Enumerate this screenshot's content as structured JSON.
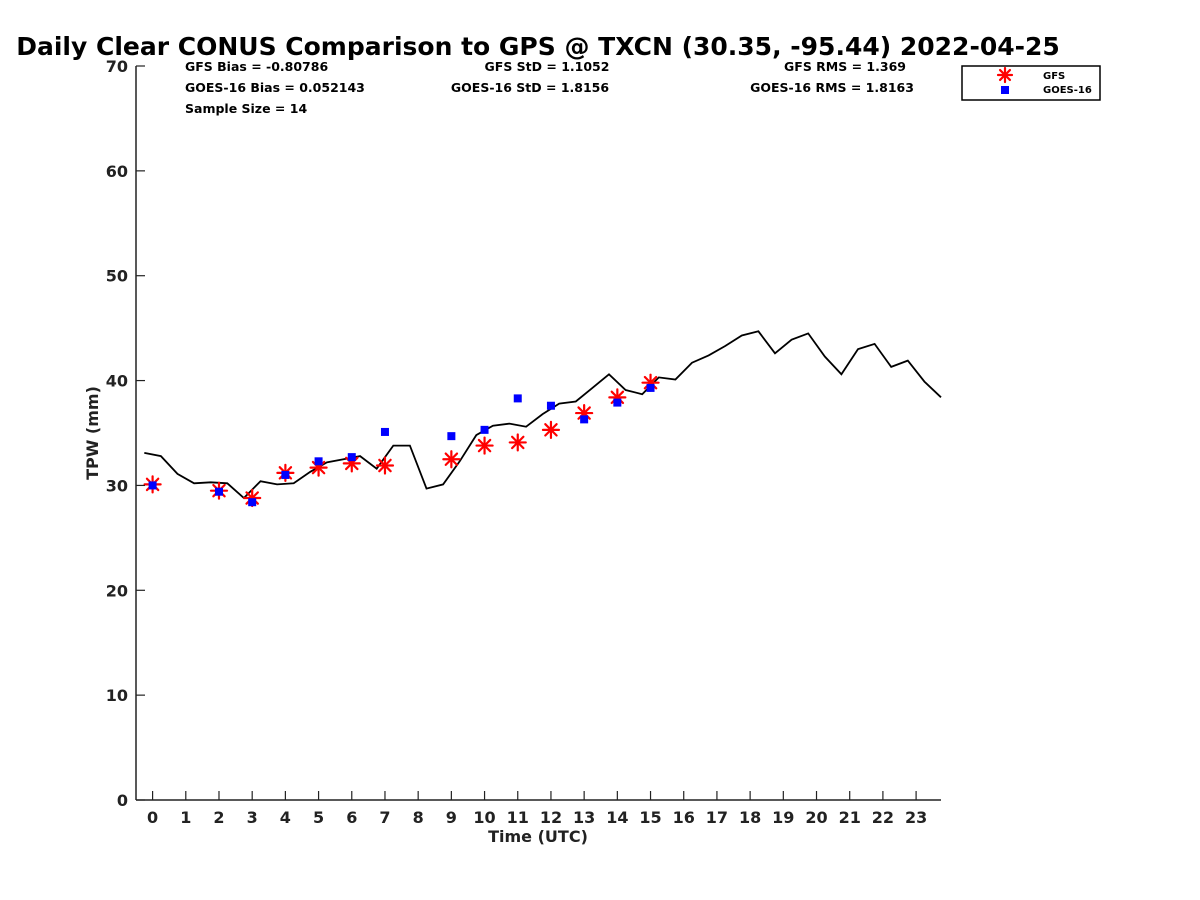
{
  "chart_data": {
    "type": "scatter",
    "title": "Daily Clear CONUS Comparison to GPS @ TXCN (30.35, -95.44) 2022-04-25",
    "xlabel": "Time (UTC)",
    "ylabel": "TPW (mm)",
    "xlim": [
      -0.5,
      23.75
    ],
    "ylim": [
      0,
      70
    ],
    "x_ticks": [
      "0",
      "1",
      "2",
      "3",
      "4",
      "5",
      "6",
      "7",
      "8",
      "9",
      "10",
      "11",
      "12",
      "13",
      "14",
      "15",
      "16",
      "17",
      "18",
      "19",
      "20",
      "21",
      "22",
      "23"
    ],
    "y_ticks": [
      "0",
      "10",
      "20",
      "30",
      "40",
      "50",
      "60",
      "70"
    ],
    "grid": false,
    "legend_position": "top-right",
    "stats": {
      "gfs_bias": "GFS Bias = -0.80786",
      "goes_bias": "GOES-16 Bias = 0.052143",
      "sample_size": "Sample Size = 14",
      "gfs_std": "GFS StD = 1.1052",
      "goes_std": "GOES-16 StD = 1.8156",
      "gfs_rms": "GFS RMS = 1.369",
      "goes_rms": "GOES-16 RMS = 1.8163"
    },
    "series": [
      {
        "name": "GFS",
        "marker": "asterisk",
        "color": "#ff0000",
        "x": [
          0,
          2,
          3,
          4,
          5,
          6,
          7,
          9,
          10,
          11,
          12,
          13,
          14,
          15
        ],
        "y": [
          30.1,
          29.5,
          28.8,
          31.2,
          31.7,
          32.1,
          31.9,
          32.5,
          33.8,
          34.1,
          35.3,
          36.9,
          38.4,
          39.8
        ]
      },
      {
        "name": "GOES-16",
        "marker": "square",
        "color": "#0000ff",
        "x": [
          0,
          2,
          3,
          4,
          5,
          6,
          7,
          9,
          10,
          11,
          12,
          13,
          14,
          15
        ],
        "y": [
          30.0,
          29.4,
          28.4,
          31.0,
          32.3,
          32.7,
          35.1,
          34.7,
          35.3,
          38.3,
          37.6,
          36.3,
          37.9,
          39.3
        ]
      },
      {
        "marker": "line",
        "color": "#000000",
        "x": [
          -0.25,
          0.25,
          0.75,
          1.25,
          1.75,
          2.25,
          2.75,
          3.25,
          3.75,
          4.25,
          4.75,
          5.25,
          5.75,
          6.25,
          6.75,
          7.25,
          7.75,
          8.25,
          8.75,
          9.25,
          9.75,
          10.25,
          10.75,
          11.25,
          11.75,
          12.25,
          12.75,
          13.25,
          13.75,
          14.25,
          14.75,
          15.25,
          15.75,
          16.25,
          16.75,
          17.25,
          17.75,
          18.25,
          18.75,
          19.25,
          19.75,
          20.25,
          20.75,
          21.25,
          21.75,
          22.25,
          22.75,
          23.25,
          23.75
        ],
        "y": [
          33.1,
          32.8,
          31.1,
          30.2,
          30.3,
          30.2,
          28.8,
          30.4,
          30.1,
          30.2,
          31.3,
          32.2,
          32.5,
          32.8,
          31.6,
          33.8,
          33.8,
          29.7,
          30.1,
          32.3,
          34.8,
          35.7,
          35.9,
          35.6,
          36.8,
          37.8,
          38.0,
          39.3,
          40.6,
          39.1,
          38.7,
          40.3,
          40.1,
          41.7,
          42.4,
          43.3,
          44.3,
          44.7,
          42.6,
          43.9,
          44.5,
          42.3,
          40.6,
          43.0,
          43.5,
          41.3,
          41.9,
          39.9,
          38.4
        ]
      }
    ]
  }
}
